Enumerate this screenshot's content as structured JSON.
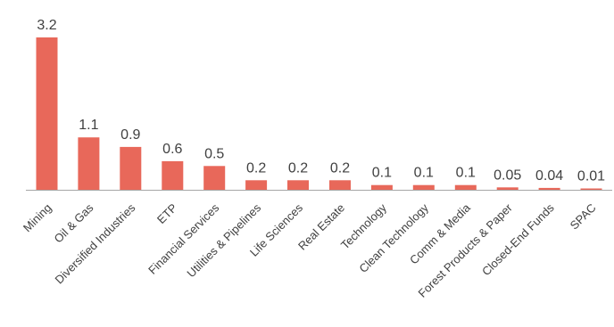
{
  "chart_data": {
    "type": "bar",
    "title": "",
    "xlabel": "",
    "ylabel": "",
    "categories": [
      "Mining",
      "Oil & Gas",
      "Diversified Industries",
      "ETP",
      "Financial Services",
      "Utilities & Pipelines",
      "Life Sciences",
      "Real Estate",
      "Technology",
      "Clean Technology",
      "Comm & Media",
      "Forest Products & Paper",
      "Closed-End Funds",
      "SPAC"
    ],
    "values": [
      3.2,
      1.1,
      0.9,
      0.6,
      0.5,
      0.2,
      0.2,
      0.2,
      0.1,
      0.1,
      0.1,
      0.05,
      0.04,
      0.01
    ],
    "value_labels": [
      "3.2",
      "1.1",
      "0.9",
      "0.6",
      "0.5",
      "0.2",
      "0.2",
      "0.2",
      "0.1",
      "0.1",
      "0.1",
      "0.05",
      "0.04",
      "0.01"
    ],
    "ylim": [
      0,
      3.2
    ],
    "grid": false,
    "legend": "none",
    "bar_color": "#E8685A",
    "axis_color": "#A6A6A6",
    "text_color": "#404040"
  }
}
